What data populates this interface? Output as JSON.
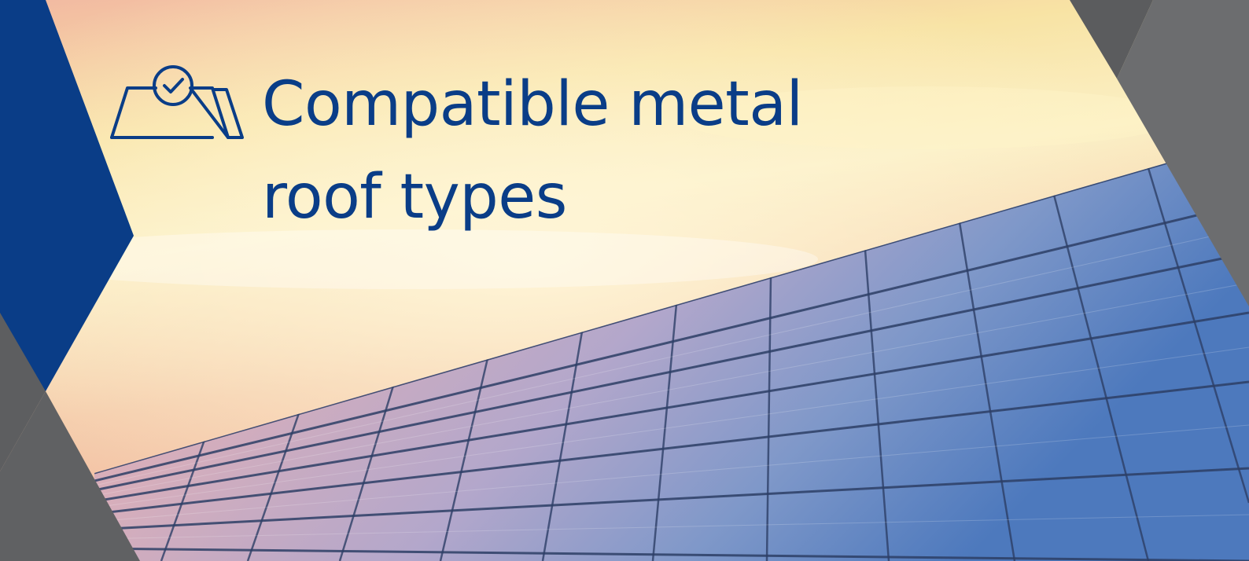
{
  "banner": {
    "title_line1": "Compatible metal",
    "title_line2": "roof types",
    "icon": "roof-check-icon",
    "colors": {
      "brand_blue": "#0a3d87",
      "slate_gray": "#5d5e60",
      "sky_warm": "#f6df9b",
      "panel_blue": "#3f6fb0"
    }
  }
}
